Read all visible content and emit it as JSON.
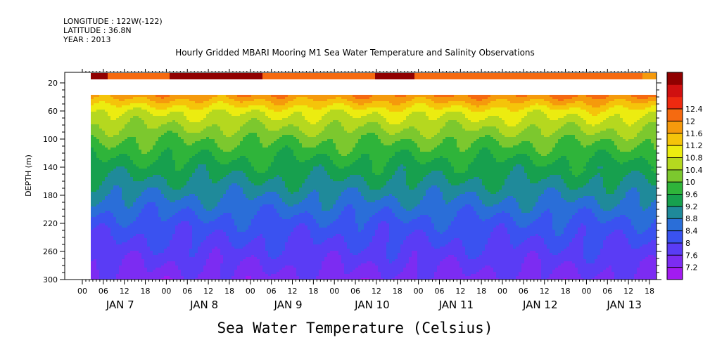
{
  "header": {
    "longitude": "LONGITUDE : 122W(-122)",
    "latitude": "LATITUDE : 36.8N",
    "year": "YEAR : 2013"
  },
  "chart_data": {
    "type": "heatmap",
    "title": "Hourly Gridded MBARI Mooring M1 Sea Water Temperature and Salinity Observations",
    "xlabel": "Sea Water Temperature (Celsius)",
    "ylabel": "DEPTH (m)",
    "x_hour_ticks": [
      "00",
      "06",
      "12",
      "18",
      "00",
      "06",
      "12",
      "18",
      "00",
      "06",
      "12",
      "18",
      "00",
      "06",
      "12",
      "18",
      "00",
      "06",
      "12",
      "18",
      "00",
      "06",
      "12",
      "18",
      "00",
      "06",
      "12",
      "18"
    ],
    "x_day_labels": [
      "JAN  7",
      "JAN  8",
      "JAN  9",
      "JAN 10",
      "JAN 11",
      "JAN 12",
      "JAN 13"
    ],
    "y_ticks": [
      20,
      60,
      100,
      140,
      180,
      220,
      260,
      300
    ],
    "ylim": [
      300,
      5
    ],
    "colorbar_levels": [
      7.2,
      7.6,
      8,
      8.4,
      8.8,
      9.2,
      9.6,
      10,
      10.4,
      10.8,
      11.2,
      11.6,
      12,
      12.4
    ],
    "colorbar_colors": [
      "#a21bf0",
      "#7c2cf2",
      "#5a3cf5",
      "#3a52f0",
      "#2a6ed8",
      "#1f8a9a",
      "#17a04e",
      "#2fb43a",
      "#7cc82e",
      "#b5d81f",
      "#ecec10",
      "#f5c40a",
      "#f59a0c",
      "#f56a10",
      "#ee2a10",
      "#d01010",
      "#900000"
    ],
    "colorbar_labels": [
      "7.2",
      "7.6",
      "8",
      "8.4",
      "8.8",
      "9.2",
      "9.6",
      "10",
      "10.4",
      "10.8",
      "11.2",
      "11.6",
      "12",
      "12.4"
    ],
    "surface_band_depth_range_m": [
      6,
      15
    ],
    "data_gap_depth_range_m": [
      15,
      37
    ],
    "temperature_profile": {
      "depth_m": [
        37,
        60,
        100,
        140,
        180,
        220,
        260,
        300
      ],
      "temperature_c": [
        11.8,
        10.8,
        10.0,
        9.4,
        8.8,
        8.2,
        7.8,
        7.4
      ]
    }
  }
}
